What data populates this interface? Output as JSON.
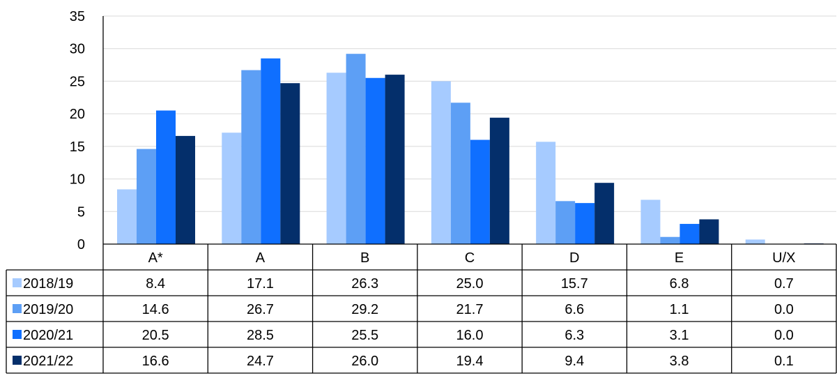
{
  "chart_data": {
    "type": "bar",
    "categories": [
      "A*",
      "A",
      "B",
      "C",
      "D",
      "E",
      "U/X"
    ],
    "series": [
      {
        "name": "2018/19",
        "color": "#a6cbff",
        "values": [
          8.4,
          17.1,
          26.3,
          25.0,
          15.7,
          6.8,
          0.7
        ],
        "labels": [
          "8.4",
          "17.1",
          "26.3",
          "25.0",
          "15.7",
          "6.8",
          "0.7"
        ]
      },
      {
        "name": "2019/20",
        "color": "#5d9ff5",
        "values": [
          14.6,
          26.7,
          29.2,
          21.7,
          6.6,
          1.1,
          0.0
        ],
        "labels": [
          "14.6",
          "26.7",
          "29.2",
          "21.7",
          "6.6",
          "1.1",
          "0.0"
        ]
      },
      {
        "name": "2020/21",
        "color": "#0f6fff",
        "values": [
          20.5,
          28.5,
          25.5,
          16.0,
          6.3,
          3.1,
          0.0
        ],
        "labels": [
          "20.5",
          "28.5",
          "25.5",
          "16.0",
          "6.3",
          "3.1",
          "0.0"
        ]
      },
      {
        "name": "2021/22",
        "color": "#042f6b",
        "values": [
          16.6,
          24.7,
          26.0,
          19.4,
          9.4,
          3.8,
          0.1
        ],
        "labels": [
          "16.6",
          "24.7",
          "26.0",
          "19.4",
          "9.4",
          "3.8",
          "0.1"
        ]
      }
    ],
    "ylim": [
      0,
      35
    ],
    "yticks": [
      0,
      5,
      10,
      15,
      20,
      25,
      30,
      35
    ],
    "grid": true,
    "legend": "data-table"
  }
}
